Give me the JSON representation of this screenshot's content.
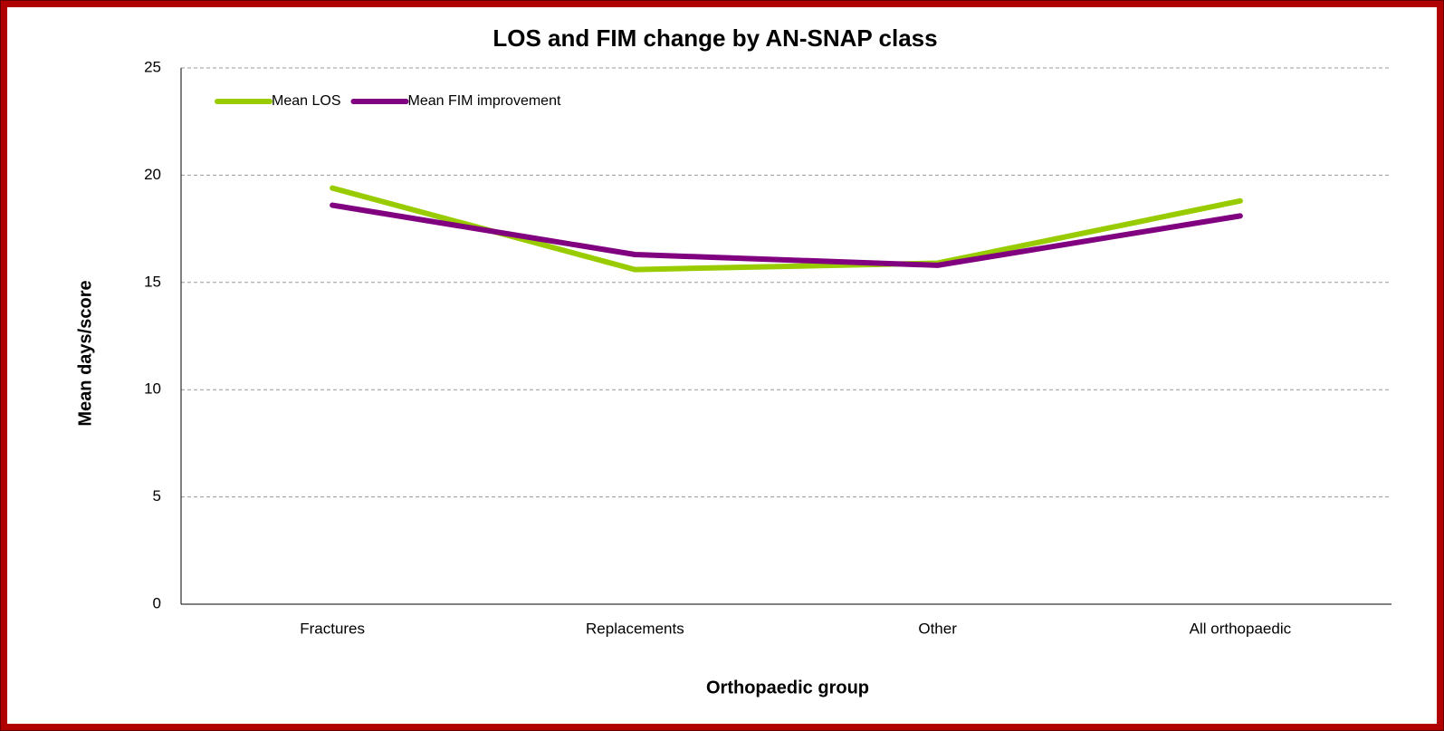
{
  "chart_data": {
    "type": "line",
    "title": "LOS and FIM change by AN-SNAP class",
    "x_label": "Orthopaedic group",
    "y_label": "Mean days/score",
    "categories": [
      "Fractures",
      "Replacements",
      "Other",
      "All orthopaedic"
    ],
    "series": [
      {
        "name": "Mean LOS",
        "color": "#99cc00",
        "values": [
          19.4,
          15.6,
          15.9,
          18.8
        ]
      },
      {
        "name": "Mean FIM improvement",
        "color": "#800080",
        "values": [
          18.6,
          16.3,
          15.8,
          18.1
        ]
      }
    ],
    "ylim": [
      0,
      25
    ],
    "yticks": [
      0,
      5,
      10,
      15,
      20,
      25
    ],
    "grid": true,
    "legend": "top-left"
  }
}
